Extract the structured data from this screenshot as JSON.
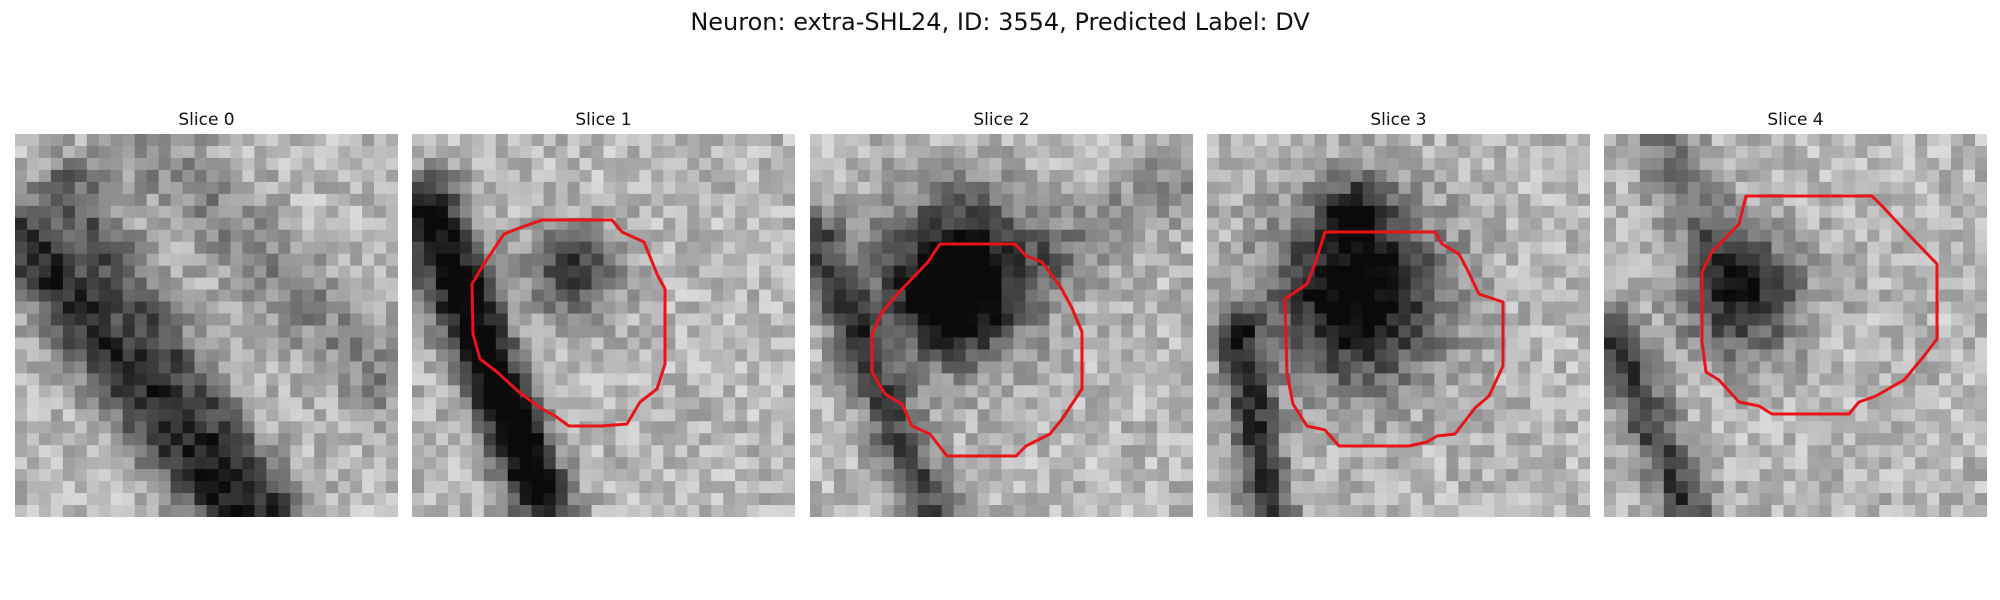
{
  "figure": {
    "title": "Neuron: extra-SHL24, ID: 3554, Predicted Label: DV"
  },
  "panels": [
    {
      "title": "Slice 0",
      "has_contour": false
    },
    {
      "title": "Slice 1",
      "has_contour": true
    },
    {
      "title": "Slice 2",
      "has_contour": true
    },
    {
      "title": "Slice 3",
      "has_contour": true
    },
    {
      "title": "Slice 4",
      "has_contour": true
    }
  ],
  "colors": {
    "contour": "#e8141a",
    "background": "#ffffff"
  }
}
